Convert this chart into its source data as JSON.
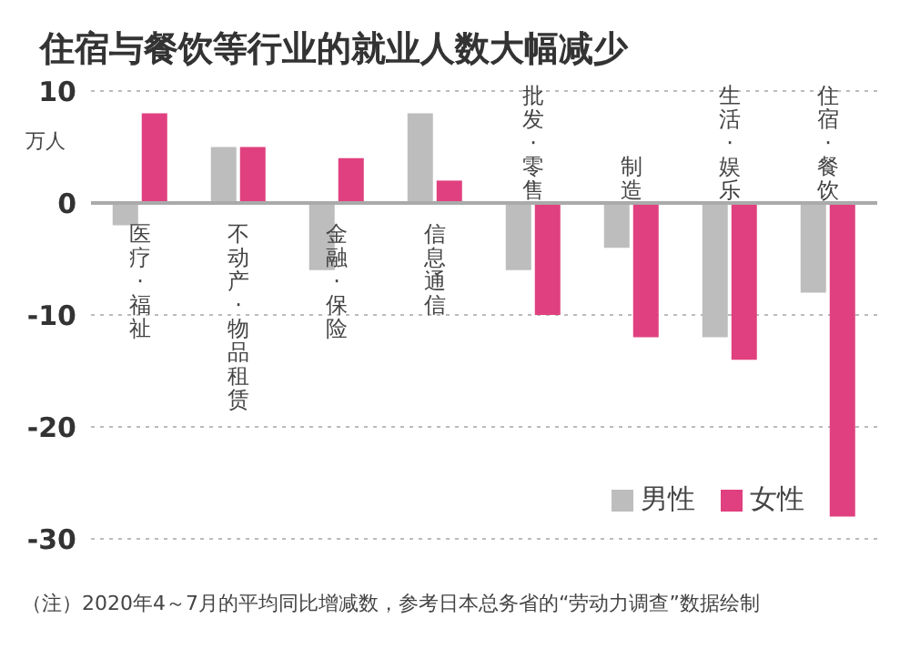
{
  "chart_data": {
    "type": "bar",
    "title": "住宿与餐饮等行业的就业人数大幅减少",
    "ylabel": "万人",
    "categories": [
      "医疗·福祉",
      "不动产·物品租赁",
      "金融·保险",
      "信息通信",
      "批发·零售",
      "制造",
      "生活·娱乐",
      "住宿·餐饮"
    ],
    "series": [
      {
        "name": "男性",
        "color": "#bdbdbd",
        "values": [
          -2,
          5,
          -6,
          8,
          -6,
          -4,
          -12,
          -8
        ]
      },
      {
        "name": "女性",
        "color": "#e0407f",
        "values": [
          8,
          5,
          4,
          2,
          -10,
          -12,
          -14,
          -28
        ]
      }
    ],
    "ylim": [
      -30,
      10
    ],
    "yticks": [
      -30,
      -20,
      -10,
      0,
      10
    ],
    "grid": "y",
    "legend": "bottom right",
    "annotations": [
      "（注）2020年4～7月的平均同比增减数，参考日本总务省的“劳动力调查”数据绘制"
    ]
  }
}
